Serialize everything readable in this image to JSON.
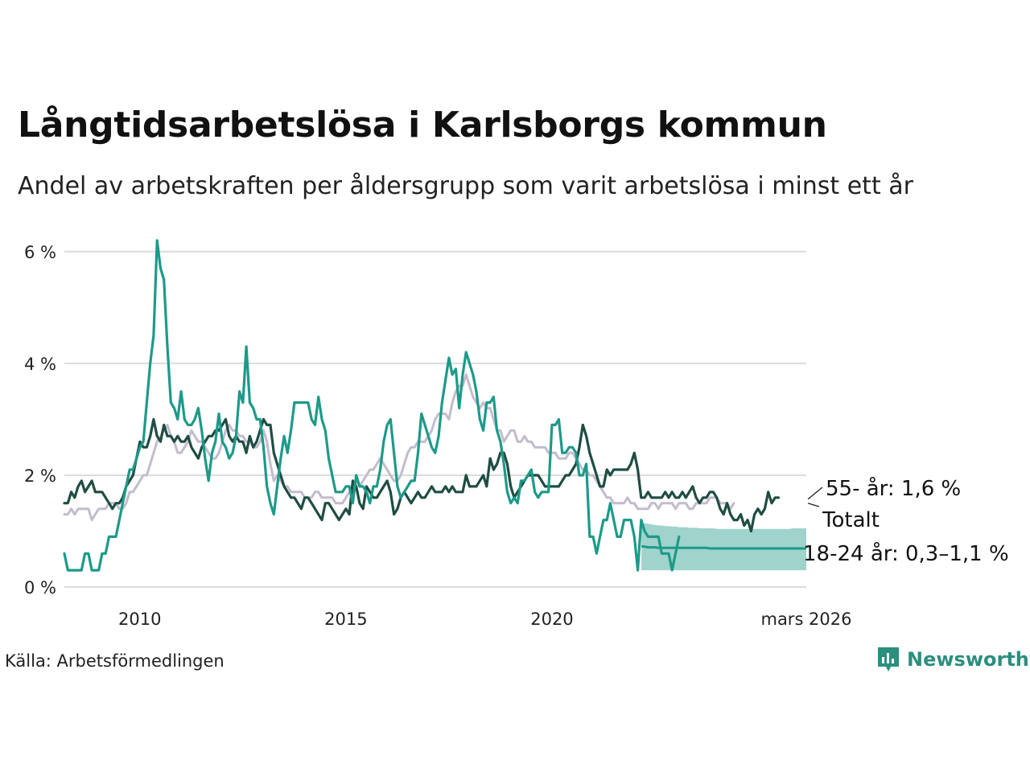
{
  "title": "Långtidsarbetslösa i Karlsborgs kommun",
  "subtitle": "Andel av arbetskraften per åldersgrupp som varit arbetslösa i minst ett år",
  "source": "Källa: Arbetsförmedlingen",
  "brand": "Newsworthy",
  "colors": {
    "total": "#c3bccd",
    "age55": "#1f4d43",
    "young": "#1d9a89",
    "band": "#9fd3cb",
    "grid": "#dcdcdc"
  },
  "chart_data": {
    "type": "line",
    "x_start": 2008.17,
    "x_step": 0.0833,
    "ylim": [
      0,
      6.3
    ],
    "y_ticks": [
      {
        "value": 0,
        "label": "0 %"
      },
      {
        "value": 2,
        "label": "2 %"
      },
      {
        "value": 4,
        "label": "4 %"
      },
      {
        "value": 6,
        "label": "6 %"
      }
    ],
    "x_ticks": [
      {
        "value": 2010,
        "label": "2010"
      },
      {
        "value": 2015,
        "label": "2015"
      },
      {
        "value": 2020,
        "label": "2020"
      },
      {
        "value": 2026.17,
        "label": "mars 2026"
      }
    ],
    "series": [
      {
        "name": "Totalt",
        "label": "Totalt",
        "key": "total",
        "values": [
          1.3,
          1.3,
          1.4,
          1.3,
          1.4,
          1.4,
          1.4,
          1.4,
          1.2,
          1.3,
          1.4,
          1.4,
          1.4,
          1.5,
          1.5,
          1.5,
          1.4,
          1.4,
          1.5,
          1.7,
          1.7,
          1.8,
          1.9,
          2.0,
          2.0,
          2.2,
          2.4,
          2.6,
          2.7,
          2.8,
          2.9,
          2.7,
          2.6,
          2.4,
          2.4,
          2.5,
          2.6,
          2.8,
          2.7,
          2.6,
          2.6,
          2.5,
          2.4,
          2.3,
          2.3,
          2.4,
          2.6,
          2.8,
          2.9,
          2.8,
          2.8,
          2.7,
          2.7,
          2.6,
          2.6,
          2.5,
          2.5,
          2.6,
          2.8,
          2.6,
          2.2,
          1.9,
          2.0,
          1.9,
          1.8,
          1.8,
          1.7,
          1.7,
          1.7,
          1.7,
          1.6,
          1.6,
          1.6,
          1.7,
          1.7,
          1.6,
          1.6,
          1.6,
          1.6,
          1.5,
          1.5,
          1.5,
          1.6,
          1.7,
          1.8,
          1.9,
          1.8,
          1.9,
          2.0,
          2.1,
          2.1,
          2.2,
          2.3,
          2.2,
          2.1,
          2.0,
          1.9,
          1.9,
          2.0,
          2.2,
          2.4,
          2.5,
          2.5,
          2.6,
          2.6,
          2.6,
          2.7,
          2.8,
          3.0,
          3.1,
          3.1,
          3.1,
          3.0,
          3.3,
          3.5,
          3.6,
          3.6,
          3.8,
          3.6,
          3.4,
          3.3,
          3.2,
          3.3,
          3.2,
          3.2,
          3.0,
          2.8,
          2.8,
          2.6,
          2.7,
          2.8,
          2.8,
          2.6,
          2.6,
          2.7,
          2.6,
          2.6,
          2.5,
          2.5,
          2.5,
          2.5,
          2.4,
          2.4,
          2.4,
          2.3,
          2.3,
          2.3,
          2.4,
          2.4,
          2.3,
          2.2,
          2.1,
          2.1,
          2.0,
          2.0,
          1.9,
          1.8,
          1.7,
          1.6,
          1.6,
          1.5,
          1.5,
          1.5,
          1.5,
          1.6,
          1.5,
          1.5,
          1.4,
          1.4,
          1.4,
          1.4,
          1.5,
          1.5,
          1.4,
          1.5,
          1.5,
          1.5,
          1.5,
          1.4,
          1.5,
          1.5,
          1.5,
          1.4,
          1.4,
          1.5,
          1.5,
          1.5,
          1.5,
          1.6,
          1.6,
          1.6,
          1.5,
          1.5,
          1.5,
          1.4,
          1.5
        ]
      },
      {
        "name": "55- år",
        "label": "55- år: 1,6 %",
        "key": "age55",
        "values": [
          1.5,
          1.5,
          1.7,
          1.6,
          1.8,
          1.9,
          1.7,
          1.8,
          1.9,
          1.7,
          1.7,
          1.7,
          1.6,
          1.5,
          1.4,
          1.5,
          1.5,
          1.6,
          1.8,
          1.9,
          2.0,
          2.3,
          2.6,
          2.5,
          2.5,
          2.7,
          3.0,
          2.7,
          2.6,
          2.9,
          2.7,
          2.7,
          2.6,
          2.7,
          2.6,
          2.6,
          2.7,
          2.5,
          2.4,
          2.3,
          2.5,
          2.6,
          2.7,
          2.7,
          2.8,
          2.8,
          2.9,
          3.0,
          2.7,
          2.6,
          2.7,
          2.6,
          2.6,
          2.4,
          2.7,
          2.5,
          2.6,
          2.8,
          3.0,
          2.9,
          2.9,
          2.4,
          2.2,
          2.0,
          1.8,
          1.7,
          1.6,
          1.6,
          1.5,
          1.4,
          1.6,
          1.6,
          1.5,
          1.4,
          1.3,
          1.2,
          1.5,
          1.5,
          1.4,
          1.3,
          1.2,
          1.3,
          1.4,
          1.3,
          1.9,
          1.8,
          1.5,
          1.4,
          1.8,
          1.7,
          1.6,
          1.6,
          1.7,
          1.8,
          1.9,
          1.7,
          1.3,
          1.4,
          1.6,
          1.7,
          1.6,
          1.5,
          1.6,
          1.7,
          1.6,
          1.6,
          1.7,
          1.8,
          1.7,
          1.7,
          1.7,
          1.8,
          1.7,
          1.8,
          1.7,
          1.7,
          1.7,
          2.0,
          1.8,
          1.8,
          1.8,
          1.9,
          2.0,
          1.8,
          2.3,
          2.1,
          2.2,
          2.4,
          2.4,
          2.2,
          1.8,
          1.6,
          1.7,
          1.8,
          1.9,
          2.0,
          2.0,
          2.0,
          2.0,
          1.9,
          1.8,
          1.8,
          1.8,
          1.8,
          1.8,
          1.9,
          2.0,
          2.0,
          2.1,
          2.2,
          2.5,
          2.9,
          2.7,
          2.4,
          2.2,
          2.0,
          1.8,
          1.8,
          2.1,
          2.0,
          2.1,
          2.1,
          2.1,
          2.1,
          2.1,
          2.2,
          2.4,
          2.1,
          1.6,
          1.6,
          1.7,
          1.6,
          1.6,
          1.6,
          1.6,
          1.7,
          1.6,
          1.7,
          1.6,
          1.6,
          1.7,
          1.6,
          1.7,
          1.8,
          1.6,
          1.5,
          1.6,
          1.6,
          1.7,
          1.7,
          1.6,
          1.4,
          1.3,
          1.5,
          1.3,
          1.2,
          1.2,
          1.3,
          1.1,
          1.2,
          1.0,
          1.3,
          1.4,
          1.3,
          1.4,
          1.7,
          1.5,
          1.6,
          1.6
        ]
      },
      {
        "name": "18-24 år",
        "label": "18-24 år: 0,3–1,1 %",
        "key": "young",
        "values": [
          0.6,
          0.3,
          0.3,
          0.3,
          0.3,
          0.3,
          0.6,
          0.6,
          0.3,
          0.3,
          0.3,
          0.6,
          0.6,
          0.9,
          0.9,
          0.9,
          1.2,
          1.5,
          1.8,
          2.1,
          2.1,
          2.3,
          2.5,
          2.6,
          3.3,
          4.0,
          4.5,
          6.2,
          5.7,
          5.5,
          4.3,
          3.3,
          3.2,
          3.0,
          3.5,
          3.0,
          2.9,
          2.9,
          3.0,
          3.2,
          2.8,
          2.3,
          1.9,
          2.4,
          2.6,
          3.1,
          2.6,
          2.5,
          2.3,
          2.4,
          2.7,
          3.5,
          3.3,
          4.3,
          3.3,
          3.2,
          3.0,
          3.0,
          2.5,
          1.8,
          1.5,
          1.3,
          1.8,
          2.3,
          2.7,
          2.4,
          2.8,
          3.3,
          3.3,
          3.3,
          3.3,
          3.3,
          3.0,
          2.9,
          3.4,
          3.0,
          2.8,
          2.3,
          2.0,
          1.7,
          1.7,
          1.7,
          1.8,
          1.8,
          1.5,
          2.0,
          1.8,
          1.8,
          1.7,
          1.5,
          1.8,
          1.8,
          2.1,
          2.6,
          2.9,
          3.0,
          2.4,
          1.8,
          1.6,
          1.7,
          1.8,
          1.9,
          1.9,
          2.4,
          3.1,
          2.9,
          2.7,
          2.5,
          2.4,
          2.7,
          3.3,
          3.7,
          4.1,
          3.8,
          3.9,
          3.2,
          3.8,
          4.2,
          4.0,
          3.8,
          3.5,
          3.0,
          2.8,
          3.3,
          3.3,
          3.4,
          2.8,
          2.6,
          2.2,
          1.7,
          1.5,
          1.6,
          1.5,
          1.9,
          1.9,
          2.0,
          2.1,
          1.7,
          1.6,
          1.7,
          1.7,
          1.7,
          2.9,
          2.9,
          3.0,
          2.4,
          2.4,
          2.5,
          2.5,
          2.4,
          2.0,
          2.0,
          2.2,
          0.9,
          0.9,
          0.6,
          0.9,
          1.2,
          1.2,
          1.5,
          1.2,
          0.9,
          0.9,
          1.2,
          1.2,
          1.2,
          0.9,
          0.3,
          1.2,
          1.0,
          0.9,
          0.9,
          0.9,
          0.9,
          0.6,
          0.6,
          0.6,
          0.3,
          0.6,
          0.9
        ]
      }
    ],
    "band": {
      "name": "18-24 år intervall",
      "x_from": 2022.17,
      "x_to": 2026.17,
      "low": [
        0.3,
        0.3,
        0.3,
        0.3,
        0.3,
        0.3,
        0.3,
        0.3,
        0.3,
        0.3,
        0.3,
        0.3,
        0.3,
        0.3,
        0.3,
        0.3,
        0.3,
        0.3,
        0.3,
        0.3,
        0.3,
        0.3,
        0.3,
        0.3,
        0.3,
        0.3,
        0.3,
        0.3,
        0.3,
        0.3,
        0.3,
        0.3,
        0.3,
        0.3,
        0.3,
        0.3,
        0.3,
        0.3,
        0.3,
        0.3,
        0.3,
        0.3,
        0.3,
        0.3,
        0.3,
        0.3,
        0.3,
        0.3,
        0.3
      ],
      "high": [
        1.15,
        1.14,
        1.13,
        1.12,
        1.11,
        1.1,
        1.1,
        1.09,
        1.09,
        1.08,
        1.08,
        1.07,
        1.07,
        1.07,
        1.06,
        1.06,
        1.06,
        1.05,
        1.05,
        1.05,
        1.05,
        1.05,
        1.04,
        1.04,
        1.04,
        1.04,
        1.04,
        1.04,
        1.04,
        1.04,
        1.04,
        1.04,
        1.04,
        1.04,
        1.04,
        1.04,
        1.04,
        1.04,
        1.04,
        1.04,
        1.04,
        1.04,
        1.04,
        1.04,
        1.05,
        1.05,
        1.05,
        1.05,
        1.05
      ],
      "mid": [
        0.73,
        0.72,
        0.71,
        0.71,
        0.71,
        0.7,
        0.7,
        0.7,
        0.7,
        0.7,
        0.7,
        0.7,
        0.7,
        0.7,
        0.7,
        0.7,
        0.7,
        0.7,
        0.7,
        0.7,
        0.69,
        0.69,
        0.69,
        0.69,
        0.69,
        0.69,
        0.69,
        0.69,
        0.69,
        0.69,
        0.69,
        0.69,
        0.69,
        0.69,
        0.69,
        0.69,
        0.69,
        0.69,
        0.69,
        0.69,
        0.69,
        0.69,
        0.69,
        0.69,
        0.69,
        0.69,
        0.69,
        0.69,
        0.69
      ]
    }
  }
}
